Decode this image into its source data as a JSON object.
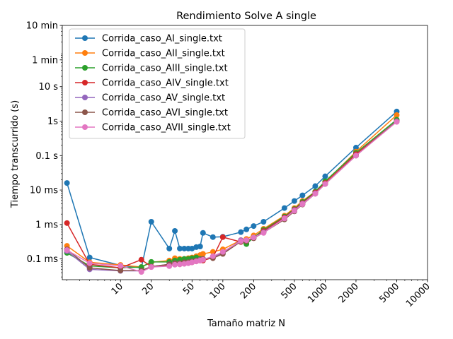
{
  "chart_data": {
    "type": "line",
    "title": "Rendimiento Solve A single",
    "xlabel": "Tamaño matriz N",
    "ylabel": "Tiempo transcurrido (s)",
    "x_scale": "log",
    "y_scale": "log",
    "xlim": [
      2.7,
      10000
    ],
    "ylim": [
      2.5e-05,
      600
    ],
    "x_ticks": [
      10,
      20,
      50,
      100,
      200,
      500,
      1000,
      2000,
      5000,
      10000
    ],
    "x_tick_labels": [
      "10",
      "20",
      "50",
      "100",
      "200",
      "500",
      "1000",
      "2000",
      "5000",
      "10000"
    ],
    "y_ticks": [
      0.0001,
      0.001,
      0.01,
      0.1,
      1,
      10,
      60,
      600
    ],
    "y_tick_labels": [
      "0.1 ms",
      "1 ms",
      "10 ms",
      "0.1 s",
      "1s",
      "10 s",
      "1 min",
      "10 min"
    ],
    "grid": false,
    "legend_position": "top-left",
    "colors": [
      "#1f77b4",
      "#ff7f0e",
      "#2ca02c",
      "#d62728",
      "#9467bd",
      "#8c564b",
      "#e377c2"
    ],
    "series": [
      {
        "name": "Corrida_caso_AI_single.txt",
        "x": [
          3,
          5,
          10,
          16,
          20,
          30,
          34,
          38,
          42,
          46,
          50,
          55,
          60,
          64,
          80,
          100,
          150,
          170,
          200,
          250,
          400,
          500,
          600,
          800,
          1000,
          2000,
          5000
        ],
        "y": [
          0.016,
          0.00011,
          6.5e-05,
          5.5e-05,
          0.0012,
          0.0002,
          0.00065,
          0.0002,
          0.0002,
          0.0002,
          0.0002,
          0.00022,
          0.00023,
          0.00057,
          0.00043,
          0.00044,
          0.0006,
          0.00072,
          0.0009,
          0.0012,
          0.003,
          0.0048,
          0.007,
          0.013,
          0.025,
          0.17,
          1.9
        ]
      },
      {
        "name": "Corrida_caso_AII_single.txt",
        "x": [
          3,
          5,
          10,
          16,
          20,
          30,
          34,
          38,
          42,
          46,
          50,
          55,
          60,
          64,
          80,
          100,
          150,
          170,
          200,
          250,
          400,
          500,
          600,
          800,
          1000,
          2000,
          5000
        ],
        "y": [
          0.00024,
          8e-05,
          6.7e-05,
          5.8e-05,
          8e-05,
          9e-05,
          0.000105,
          0.0001,
          0.0001,
          0.000105,
          0.00011,
          0.00012,
          0.00013,
          0.00014,
          0.00016,
          0.00019,
          0.00035,
          0.00038,
          0.00048,
          0.00075,
          0.0018,
          0.003,
          0.0048,
          0.009,
          0.017,
          0.13,
          1.5
        ]
      },
      {
        "name": "Corrida_caso_AIII_single.txt",
        "x": [
          3,
          5,
          10,
          16,
          20,
          30,
          34,
          38,
          42,
          46,
          50,
          55,
          60,
          64,
          80,
          100,
          150,
          170,
          200,
          250,
          400,
          500,
          600,
          800,
          1000,
          2000,
          5000
        ],
        "y": [
          0.00015,
          6.3e-05,
          5.5e-05,
          5.8e-05,
          8.2e-05,
          8.2e-05,
          9e-05,
          9.5e-05,
          0.0001,
          0.0001,
          0.000105,
          0.00011,
          0.0001,
          0.0001,
          0.00011,
          0.00015,
          0.00032,
          0.00027,
          0.00042,
          0.0007,
          0.0017,
          0.0028,
          0.0045,
          0.009,
          0.018,
          0.12,
          1.1
        ]
      },
      {
        "name": "Corrida_caso_AIV_single.txt",
        "x": [
          3,
          5,
          10,
          16,
          20,
          30,
          34,
          38,
          42,
          46,
          50,
          55,
          60,
          64,
          80,
          100,
          150,
          170,
          200,
          250,
          400,
          500,
          600,
          800,
          1000,
          2000,
          5000
        ],
        "y": [
          0.0011,
          7e-05,
          5.5e-05,
          9.5e-05,
          6e-05,
          6.5e-05,
          7e-05,
          7e-05,
          7.5e-05,
          8e-05,
          8e-05,
          8.5e-05,
          9e-05,
          9e-05,
          0.00011,
          0.00043,
          0.00031,
          0.00033,
          0.0004,
          0.00065,
          0.0016,
          0.0027,
          0.0042,
          0.0085,
          0.016,
          0.11,
          1.0
        ]
      },
      {
        "name": "Corrida_caso_AV_single.txt",
        "x": [
          3,
          5,
          10,
          16,
          20,
          30,
          34,
          38,
          42,
          46,
          50,
          55,
          60,
          64,
          80,
          100,
          150,
          170,
          200,
          250,
          400,
          500,
          600,
          800,
          1000,
          2000,
          5000
        ],
        "y": [
          0.00017,
          5e-05,
          4.5e-05,
          4.5e-05,
          6e-05,
          7e-05,
          7.5e-05,
          7.5e-05,
          7.8e-05,
          8e-05,
          8.5e-05,
          9e-05,
          9.5e-05,
          0.0001,
          0.00011,
          0.00015,
          0.00035,
          0.00034,
          0.00041,
          0.0006,
          0.0015,
          0.0026,
          0.004,
          0.008,
          0.015,
          0.1,
          1.0
        ]
      },
      {
        "name": "Corrida_caso_AVI_single.txt",
        "x": [
          3,
          5,
          10,
          16,
          20,
          30,
          34,
          38,
          42,
          46,
          50,
          55,
          60,
          64,
          80,
          100,
          150,
          170,
          200,
          250,
          400,
          500,
          600,
          800,
          1000,
          2000,
          5000
        ],
        "y": [
          0.00019,
          5.5e-05,
          4.6e-05,
          4.6e-05,
          6e-05,
          7e-05,
          7.5e-05,
          7.5e-05,
          8e-05,
          8e-05,
          8.5e-05,
          9e-05,
          9.2e-05,
          0.0001,
          0.000105,
          0.00014,
          0.00032,
          0.00033,
          0.0004,
          0.00058,
          0.0014,
          0.0024,
          0.0038,
          0.0078,
          0.015,
          0.1,
          0.98
        ]
      },
      {
        "name": "Corrida_caso_AVII_single.txt",
        "x": [
          3,
          5,
          10,
          16,
          20,
          30,
          34,
          38,
          42,
          46,
          50,
          55,
          60,
          64,
          80,
          100,
          150,
          170,
          200,
          250,
          400,
          500,
          600,
          800,
          1000,
          2000,
          5000
        ],
        "y": [
          0.00018,
          7.5e-05,
          6.3e-05,
          4.2e-05,
          5.8e-05,
          6.2e-05,
          6.8e-05,
          7e-05,
          7.2e-05,
          7.5e-05,
          8e-05,
          8.5e-05,
          9e-05,
          9.5e-05,
          0.00012,
          0.00016,
          0.00033,
          0.00035,
          0.00042,
          0.00057,
          0.0015,
          0.0025,
          0.0039,
          0.0078,
          0.015,
          0.1,
          0.95
        ]
      }
    ]
  }
}
